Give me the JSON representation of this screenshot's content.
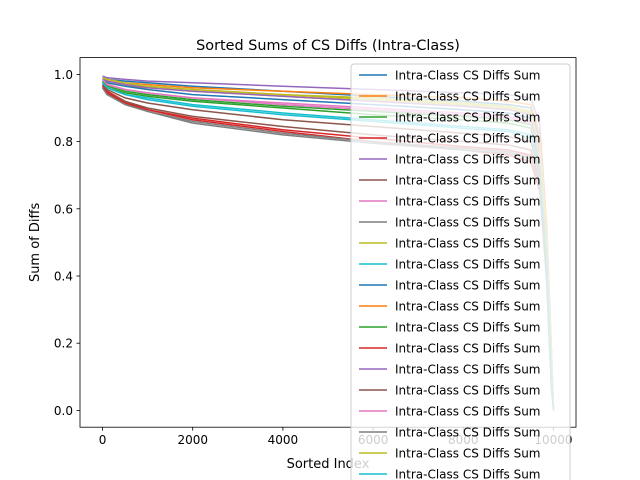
{
  "chart_data": {
    "type": "line",
    "title": "Sorted Sums of CS Diffs (Intra-Class)",
    "xlabel": "Sorted Index",
    "ylabel": "Sum of Diffs",
    "xlim": [
      -500,
      10500
    ],
    "ylim": [
      -0.05,
      1.05
    ],
    "xticks": [
      0,
      2000,
      4000,
      6000,
      8000,
      10000
    ],
    "xtick_labels": [
      "0",
      "2000",
      "4000",
      "6000",
      "8000",
      "10000"
    ],
    "yticks": [
      0.0,
      0.2,
      0.4,
      0.6,
      0.8,
      1.0
    ],
    "ytick_labels": [
      "0.0",
      "0.2",
      "0.4",
      "0.6",
      "0.8",
      "1.0"
    ],
    "grid": false,
    "legend": {
      "placement": "upper right"
    },
    "colors": [
      "#1f77b4",
      "#ff7f0e",
      "#2ca02c",
      "#d62728",
      "#9467bd",
      "#8c564b",
      "#e377c2",
      "#7f7f7f",
      "#bcbd22",
      "#17becf"
    ],
    "series": [
      {
        "name": "Intra-Class CS Diffs Sum",
        "x": [
          0,
          100,
          500,
          1000,
          2000,
          4000,
          6000,
          8000,
          9000,
          9500,
          9700,
          9850,
          9950,
          10000
        ],
        "y": [
          0.99,
          0.985,
          0.98,
          0.975,
          0.965,
          0.95,
          0.935,
          0.92,
          0.91,
          0.9,
          0.8,
          0.5,
          0.15,
          0.0
        ]
      },
      {
        "name": "Intra-Class CS Diffs Sum",
        "x": [
          0,
          100,
          500,
          1000,
          2000,
          4000,
          6000,
          8000,
          9000,
          9500,
          9700,
          9850,
          9950,
          10000
        ],
        "y": [
          0.985,
          0.975,
          0.965,
          0.96,
          0.95,
          0.935,
          0.92,
          0.905,
          0.895,
          0.88,
          0.7,
          0.45,
          0.2,
          0.0
        ]
      },
      {
        "name": "Intra-Class CS Diffs Sum",
        "x": [
          0,
          100,
          500,
          1000,
          2000,
          4000,
          6000,
          8000,
          9000,
          9500,
          9700,
          9850,
          9950,
          10000
        ],
        "y": [
          0.975,
          0.96,
          0.945,
          0.935,
          0.92,
          0.9,
          0.88,
          0.865,
          0.855,
          0.84,
          0.72,
          0.45,
          0.12,
          0.0
        ]
      },
      {
        "name": "Intra-Class CS Diffs Sum",
        "x": [
          0,
          100,
          500,
          1000,
          2000,
          4000,
          6000,
          8000,
          9000,
          9500,
          9700,
          9850,
          9950,
          10000
        ],
        "y": [
          0.97,
          0.95,
          0.92,
          0.895,
          0.865,
          0.83,
          0.8,
          0.775,
          0.76,
          0.74,
          0.65,
          0.4,
          0.1,
          0.0
        ]
      },
      {
        "name": "Intra-Class CS Diffs Sum",
        "x": [
          0,
          100,
          500,
          1000,
          2000,
          4000,
          6000,
          8000,
          9000,
          9500,
          9700,
          9850,
          9950,
          10000
        ],
        "y": [
          0.995,
          0.99,
          0.985,
          0.98,
          0.975,
          0.965,
          0.955,
          0.945,
          0.94,
          0.93,
          0.85,
          0.55,
          0.2,
          0.0
        ]
      },
      {
        "name": "Intra-Class CS Diffs Sum",
        "x": [
          0,
          100,
          500,
          1000,
          2000,
          4000,
          6000,
          8000,
          9000,
          9500,
          9700,
          9850,
          9950,
          10000
        ],
        "y": [
          0.965,
          0.945,
          0.92,
          0.9,
          0.875,
          0.845,
          0.82,
          0.8,
          0.79,
          0.775,
          0.68,
          0.42,
          0.1,
          0.0
        ]
      },
      {
        "name": "Intra-Class CS Diffs Sum",
        "x": [
          0,
          100,
          500,
          1000,
          2000,
          4000,
          6000,
          8000,
          9000,
          9500,
          9700,
          9850,
          9950,
          10000
        ],
        "y": [
          0.98,
          0.97,
          0.955,
          0.945,
          0.93,
          0.915,
          0.9,
          0.885,
          0.875,
          0.86,
          0.75,
          0.5,
          0.15,
          0.0
        ]
      },
      {
        "name": "Intra-Class CS Diffs Sum",
        "x": [
          0,
          100,
          500,
          1000,
          2000,
          4000,
          6000,
          8000,
          9000,
          9500,
          9700,
          9850,
          9950,
          10000
        ],
        "y": [
          0.96,
          0.94,
          0.915,
          0.89,
          0.855,
          0.82,
          0.795,
          0.775,
          0.765,
          0.75,
          0.66,
          0.4,
          0.08,
          0.0
        ]
      },
      {
        "name": "Intra-Class CS Diffs Sum",
        "x": [
          0,
          100,
          500,
          1000,
          2000,
          4000,
          6000,
          8000,
          9000,
          9500,
          9700,
          9850,
          9950,
          10000
        ],
        "y": [
          0.99,
          0.98,
          0.97,
          0.965,
          0.955,
          0.94,
          0.93,
          0.915,
          0.905,
          0.89,
          0.78,
          0.52,
          0.18,
          0.0
        ]
      },
      {
        "name": "Intra-Class CS Diffs Sum",
        "x": [
          0,
          100,
          500,
          1000,
          2000,
          4000,
          6000,
          8000,
          9000,
          9500,
          9700,
          9850,
          9950,
          10000
        ],
        "y": [
          0.975,
          0.96,
          0.94,
          0.925,
          0.905,
          0.88,
          0.86,
          0.84,
          0.83,
          0.81,
          0.7,
          0.45,
          0.1,
          0.0
        ]
      },
      {
        "name": "Intra-Class CS Diffs Sum",
        "x": [
          0,
          100,
          500,
          1000,
          2000,
          4000,
          6000,
          8000,
          9000,
          9500,
          9700,
          9850,
          9950,
          10000
        ],
        "y": [
          0.985,
          0.975,
          0.965,
          0.955,
          0.94,
          0.925,
          0.91,
          0.895,
          0.885,
          0.87,
          0.76,
          0.48,
          0.14,
          0.0
        ]
      },
      {
        "name": "Intra-Class CS Diffs Sum",
        "x": [
          0,
          100,
          500,
          1000,
          2000,
          4000,
          6000,
          8000,
          9000,
          9500,
          9700,
          9850,
          9950,
          10000
        ],
        "y": [
          0.99,
          0.985,
          0.975,
          0.97,
          0.96,
          0.95,
          0.94,
          0.93,
          0.92,
          0.91,
          0.82,
          0.55,
          0.2,
          0.0
        ]
      },
      {
        "name": "Intra-Class CS Diffs Sum",
        "x": [
          0,
          100,
          500,
          1000,
          2000,
          4000,
          6000,
          8000,
          9000,
          9500,
          9700,
          9850,
          9950,
          10000
        ],
        "y": [
          0.98,
          0.965,
          0.95,
          0.94,
          0.925,
          0.905,
          0.89,
          0.875,
          0.865,
          0.85,
          0.74,
          0.46,
          0.12,
          0.0
        ]
      },
      {
        "name": "Intra-Class CS Diffs Sum",
        "x": [
          0,
          100,
          500,
          1000,
          2000,
          4000,
          6000,
          8000,
          9000,
          9500,
          9700,
          9850,
          9950,
          10000
        ],
        "y": [
          0.965,
          0.945,
          0.915,
          0.895,
          0.87,
          0.835,
          0.81,
          0.785,
          0.775,
          0.76,
          0.66,
          0.4,
          0.09,
          0.0
        ]
      },
      {
        "name": "Intra-Class CS Diffs Sum",
        "x": [
          0,
          100,
          500,
          1000,
          2000,
          4000,
          6000,
          8000,
          9000,
          9500,
          9700,
          9850,
          9950,
          10000
        ],
        "y": [
          0.99,
          0.98,
          0.97,
          0.96,
          0.95,
          0.935,
          0.92,
          0.905,
          0.895,
          0.88,
          0.77,
          0.5,
          0.16,
          0.0
        ]
      },
      {
        "name": "Intra-Class CS Diffs Sum",
        "x": [
          0,
          100,
          500,
          1000,
          2000,
          4000,
          6000,
          8000,
          9000,
          9500,
          9700,
          9850,
          9950,
          10000
        ],
        "y": [
          0.97,
          0.955,
          0.93,
          0.915,
          0.895,
          0.865,
          0.845,
          0.825,
          0.815,
          0.8,
          0.7,
          0.43,
          0.1,
          0.0
        ]
      },
      {
        "name": "Intra-Class CS Diffs Sum",
        "x": [
          0,
          100,
          500,
          1000,
          2000,
          4000,
          6000,
          8000,
          9000,
          9500,
          9700,
          9850,
          9950,
          10000
        ],
        "y": [
          0.985,
          0.97,
          0.955,
          0.945,
          0.93,
          0.91,
          0.895,
          0.88,
          0.87,
          0.855,
          0.75,
          0.48,
          0.13,
          0.0
        ]
      },
      {
        "name": "Intra-Class CS Diffs Sum",
        "x": [
          0,
          100,
          500,
          1000,
          2000,
          4000,
          6000,
          8000,
          9000,
          9500,
          9700,
          9850,
          9950,
          10000
        ],
        "y": [
          0.96,
          0.94,
          0.91,
          0.89,
          0.86,
          0.825,
          0.8,
          0.78,
          0.77,
          0.755,
          0.66,
          0.38,
          0.08,
          0.0
        ]
      },
      {
        "name": "Intra-Class CS Diffs Sum",
        "x": [
          0,
          100,
          500,
          1000,
          2000,
          4000,
          6000,
          8000,
          9000,
          9500,
          9700,
          9850,
          9950,
          10000
        ],
        "y": [
          0.99,
          0.985,
          0.975,
          0.965,
          0.955,
          0.94,
          0.925,
          0.91,
          0.9,
          0.885,
          0.78,
          0.52,
          0.17,
          0.0
        ]
      },
      {
        "name": "Intra-Class CS Diffs Sum",
        "x": [
          0,
          100,
          500,
          1000,
          2000,
          4000,
          6000,
          8000,
          9000,
          9500,
          9700,
          9850,
          9950,
          10000
        ],
        "y": [
          0.975,
          0.96,
          0.94,
          0.93,
          0.91,
          0.885,
          0.865,
          0.845,
          0.835,
          0.82,
          0.72,
          0.45,
          0.11,
          0.0
        ]
      }
    ]
  }
}
